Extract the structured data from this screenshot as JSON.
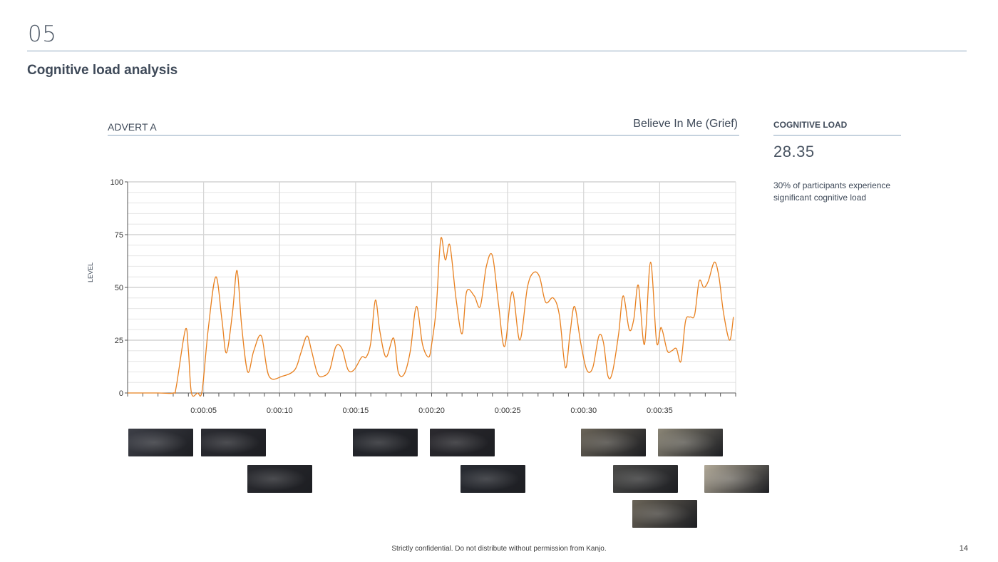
{
  "page": {
    "section_number": "05",
    "title": "Cognitive load analysis",
    "footer": "Strictly confidential. Do not distribute without permission from Kanjo.",
    "page_number": "14"
  },
  "advert": {
    "label": "ADVERT A",
    "name": "Believe In Me (Grief)"
  },
  "metric": {
    "label": "COGNITIVE LOAD",
    "value": "28.35",
    "note": "30% of participants experience significant cognitive load"
  },
  "colors": {
    "line": "#e8801f",
    "rule": "#8ea6be",
    "text": "#3f4a59",
    "grid_major": "#bdbdbd",
    "grid_minor": "#e6e6e6"
  },
  "chart_data": {
    "type": "line",
    "title": "",
    "xlabel": "",
    "ylabel": "LEVEL",
    "xlim": [
      0,
      40
    ],
    "ylim": [
      0,
      100
    ],
    "y_ticks": [
      0,
      25,
      50,
      75,
      100
    ],
    "x_ticks": [
      5,
      10,
      15,
      20,
      25,
      30,
      35
    ],
    "x_tick_labels": [
      "0:00:05",
      "0:00:10",
      "0:00:15",
      "0:00:20",
      "0:00:25",
      "0:00:30",
      "0:00:35"
    ],
    "grid": true,
    "legend": "none",
    "series": [
      {
        "x": [
          0,
          2,
          3,
          3.2,
          3.8,
          4.0,
          4.2,
          4.6,
          4.9,
          5.3,
          5.8,
          6.2,
          6.5,
          6.9,
          7.2,
          7.5,
          7.9,
          8.3,
          8.8,
          9.3,
          10.2,
          11.0,
          11.4,
          11.8,
          12.1,
          12.5,
          12.9,
          13.3,
          13.7,
          14.1,
          14.5,
          14.9,
          15.4,
          15.7,
          16.0,
          16.3,
          16.6,
          17.0,
          17.5,
          17.8,
          18.2,
          18.6,
          19.0,
          19.4,
          19.8,
          20.0,
          20.3,
          20.6,
          20.9,
          21.2,
          21.6,
          22.0,
          22.3,
          22.8,
          23.2,
          23.6,
          24.0,
          24.4,
          24.8,
          25.3,
          25.8,
          26.3,
          26.7,
          27.1,
          27.5,
          28.0,
          28.4,
          28.8,
          29.1,
          29.4,
          29.8,
          30.2,
          30.6,
          31.0,
          31.3,
          31.6,
          31.9,
          32.3,
          32.6,
          33.0,
          33.3,
          33.6,
          34.0,
          34.4,
          34.8,
          35.1,
          35.5,
          35.8,
          36.1,
          36.4,
          36.7,
          37.0,
          37.3,
          37.6,
          37.9,
          38.2,
          38.6,
          38.9,
          39.2,
          39.6,
          39.85
        ],
        "y": [
          0,
          0,
          0,
          3,
          30,
          20,
          0,
          0,
          1,
          30,
          55,
          35,
          19,
          38,
          58,
          32,
          10,
          20,
          27,
          8,
          8,
          11,
          19,
          27,
          20,
          9,
          8,
          11,
          22,
          21,
          11,
          11,
          17,
          17,
          24,
          44,
          29,
          17,
          26,
          10,
          9,
          20,
          41,
          23,
          17,
          23,
          40,
          73,
          63,
          70,
          45,
          28,
          48,
          46,
          41,
          60,
          65,
          42,
          22,
          48,
          25,
          50,
          57,
          55,
          43,
          45,
          37,
          12,
          28,
          41,
          24,
          11,
          12,
          27,
          24,
          8,
          10,
          28,
          46,
          30,
          35,
          51,
          23,
          62,
          24,
          31,
          20,
          20,
          21,
          15,
          34,
          36,
          37,
          53,
          50,
          53,
          62,
          55,
          38,
          25,
          36
        ]
      }
    ]
  },
  "thumbnails": [
    {
      "name": "thumb-1",
      "tone": "#3d3f47"
    },
    {
      "name": "thumb-2",
      "tone": "#2c2d33"
    },
    {
      "name": "thumb-3",
      "tone": "#2a2b30"
    },
    {
      "name": "thumb-4",
      "tone": "#26282e"
    },
    {
      "name": "thumb-5",
      "tone": "#2b2a2f"
    },
    {
      "name": "thumb-6",
      "tone": "#292c33"
    },
    {
      "name": "thumb-7",
      "tone": "#6b6559"
    },
    {
      "name": "thumb-8",
      "tone": "#4a4a48"
    },
    {
      "name": "thumb-9",
      "tone": "#6a6458"
    },
    {
      "name": "thumb-10",
      "tone": "#8b8677"
    },
    {
      "name": "thumb-11",
      "tone": "#b2aa99"
    }
  ]
}
